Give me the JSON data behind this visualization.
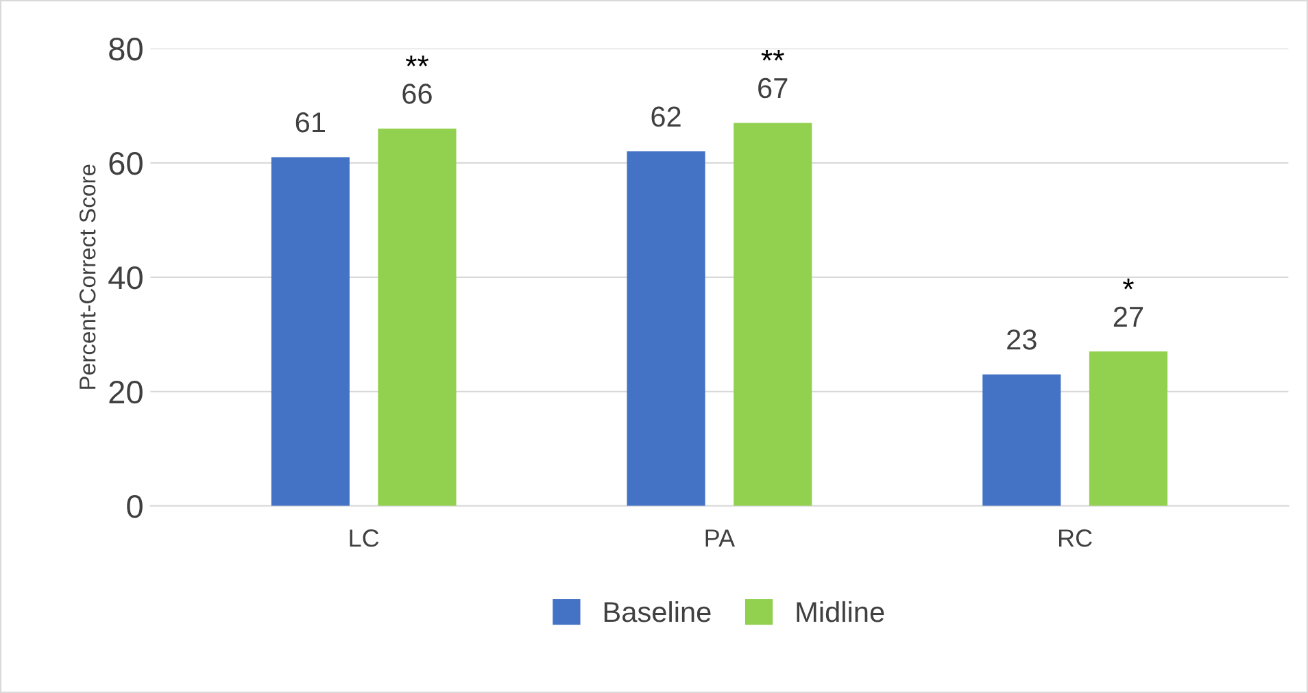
{
  "chart_data": {
    "type": "bar",
    "ylabel": "Percent-Correct Score",
    "categories": [
      "LC",
      "PA",
      "RC"
    ],
    "series": [
      {
        "name": "Baseline",
        "color": "#4472c4",
        "values": [
          61,
          62,
          23
        ]
      },
      {
        "name": "Midline",
        "color": "#92d050",
        "values": [
          66,
          67,
          27
        ]
      }
    ],
    "ylim": [
      0,
      80
    ],
    "yticks": [
      0,
      20,
      40,
      60,
      80
    ],
    "grid": "y",
    "legend": "bottom",
    "data_labels": true,
    "annotations": [
      "**",
      "**",
      "*"
    ]
  }
}
